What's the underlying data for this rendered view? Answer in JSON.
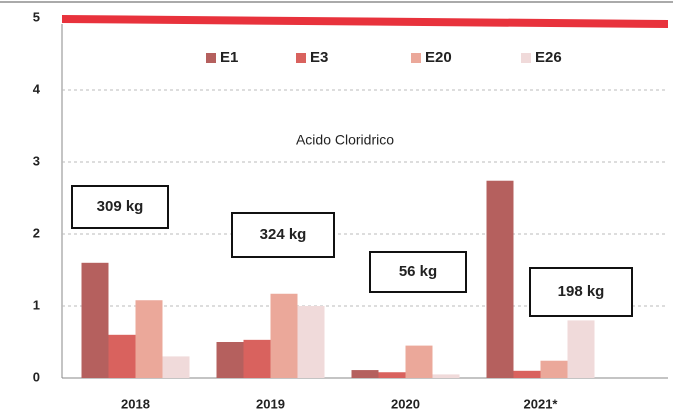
{
  "chart_data": {
    "type": "bar",
    "title": "Acido Cloridrico",
    "categories": [
      "2018",
      "2019",
      "2020",
      "2021*"
    ],
    "series": [
      {
        "name": "E1",
        "color": "#b5605e",
        "values": [
          1.6,
          0.5,
          0.11,
          2.74
        ]
      },
      {
        "name": "E3",
        "color": "#d9625e",
        "values": [
          0.6,
          0.53,
          0.08,
          0.1
        ]
      },
      {
        "name": "E20",
        "color": "#eba89a",
        "values": [
          1.08,
          1.17,
          0.45,
          0.24
        ]
      },
      {
        "name": "E26",
        "color": "#f0dada",
        "values": [
          0.3,
          1.0,
          0.05,
          0.8
        ]
      }
    ],
    "annotations": [
      "309 kg",
      "324 kg",
      "56 kg",
      "198 kg"
    ],
    "ylim": [
      0,
      5
    ],
    "yticks": [
      0,
      1,
      2,
      3,
      4,
      5
    ],
    "grid": true,
    "legend": "top"
  }
}
